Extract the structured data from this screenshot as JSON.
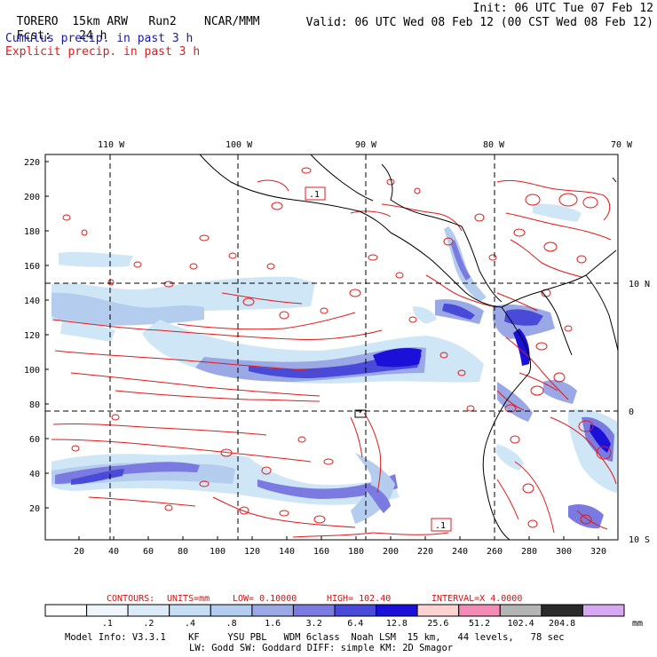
{
  "header": {
    "model": "TORERO",
    "resolution": "15km ARW",
    "run": "Run2",
    "org": "NCAR/MMM",
    "init": "Init: 06 UTC Tue 07 Feb 12",
    "fcst_label": "Fcst:",
    "fcst_value": "24 h",
    "valid": "Valid: 06 UTC Wed 08 Feb 12 (00 CST Wed 08 Feb 12)",
    "field1": "Cumulus precip. in past 3 h",
    "field2": "Explicit precip. in past 3 h"
  },
  "map": {
    "top_ticks": [
      "110 W",
      "100 W",
      "90 W",
      "80 W",
      "70 W"
    ],
    "left_ticks": [
      "220",
      "200",
      "180",
      "160",
      "140",
      "120",
      "100",
      "80",
      "60",
      "40",
      "20"
    ],
    "bottom_ticks": [
      "20",
      "40",
      "60",
      "80",
      "100",
      "120",
      "140",
      "160",
      "180",
      "200",
      "220",
      "240",
      "260",
      "280",
      "300",
      "320"
    ],
    "right_ticks": [
      "10 N",
      "0",
      "10 S"
    ],
    "label_boxes": [
      ".1",
      ".1"
    ],
    "colors": {
      "contour": "#e01a1a",
      "coast": "#000000",
      "precip_light": "#cfe6f6",
      "precip_mid": "#8c8ce6",
      "precip_strong": "#3a3ad6",
      "precip_max": "#0a0ab4"
    }
  },
  "contour_line": {
    "label": "CONTOURS:",
    "units": "UNITS=mm",
    "low": "LOW= 0.10000",
    "high": "HIGH= 102.40",
    "interval": "INTERVAL=X 4.0000"
  },
  "legend": {
    "labels": [
      ".1",
      ".2",
      ".4",
      ".8",
      "1.6",
      "3.2",
      "6.4",
      "12.8",
      "25.6",
      "51.2",
      "102.4",
      "204.8"
    ],
    "unit": "mm",
    "colors": [
      "#ffffff",
      "#eef6fc",
      "#dcebf8",
      "#c6def4",
      "#b4cdee",
      "#9aa8e6",
      "#7a7ae0",
      "#4a4ad8",
      "#1a10d8",
      "#ffd2d2",
      "#f28cb4",
      "#b4b4b4",
      "#2a2a2a",
      "#d6a8f2"
    ]
  },
  "model_info": {
    "line1": "Model Info: V3.3.1    KF     YSU PBL   WDM 6class  Noah LSM  15 km,   44 levels,   78 sec",
    "line2": "LW: Godd SW: Goddard DIFF: simple KM: 2D Smagor"
  }
}
